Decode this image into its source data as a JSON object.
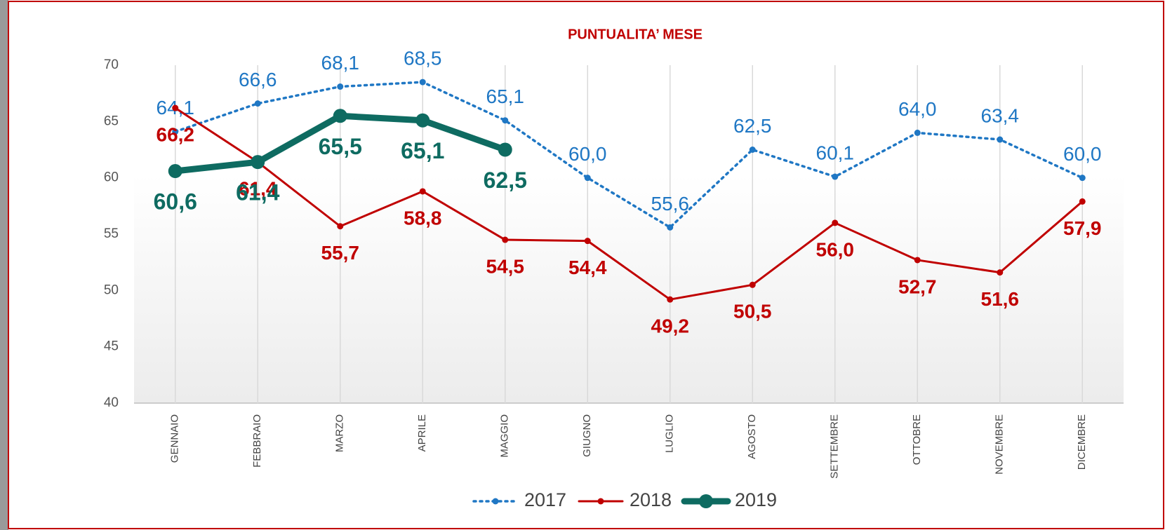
{
  "chart_data": {
    "type": "line",
    "title": "PUNTUALITA’ MESE",
    "categories": [
      "GENNAIO",
      "FEBBRAIO",
      "MARZO",
      "APRILE",
      "MAGGIO",
      "GIUGNO",
      "LUGLIO",
      "AGOSTO",
      "SETTEMBRE",
      "OTTOBRE",
      "NOVEMBRE",
      "DICEMBRE"
    ],
    "series": [
      {
        "name": "2017",
        "color": "#1f77c4",
        "style": "dotted",
        "values": [
          64.1,
          66.6,
          68.1,
          68.5,
          65.1,
          60.0,
          55.6,
          62.5,
          60.1,
          64.0,
          63.4,
          60.0
        ],
        "value_labels": [
          "64,1",
          "66,6",
          "68,1",
          "68,5",
          "65,1",
          "60,0",
          "55,6",
          "62,5",
          "60,1",
          "64,0",
          "63,4",
          "60,0"
        ]
      },
      {
        "name": "2018",
        "color": "#c00000",
        "style": "solid",
        "values": [
          66.2,
          61.4,
          55.7,
          58.8,
          54.5,
          54.4,
          49.2,
          50.5,
          56.0,
          52.7,
          51.6,
          57.9
        ],
        "value_labels": [
          "66,2",
          "61,4",
          "55,7",
          "58,8",
          "54,5",
          "54,4",
          "49,2",
          "50,5",
          "56,0",
          "52,7",
          "51,6",
          "57,9"
        ]
      },
      {
        "name": "2019",
        "color": "#0e6b61",
        "style": "thick",
        "values": [
          60.6,
          61.4,
          65.5,
          65.1,
          62.5,
          null,
          null,
          null,
          null,
          null,
          null,
          null
        ],
        "value_labels": [
          "60,6",
          "61,4",
          "65,5",
          "65,1",
          "62,5",
          null,
          null,
          null,
          null,
          null,
          null,
          null
        ]
      }
    ],
    "ylim": [
      40,
      70
    ],
    "yticks": [
      40,
      45,
      50,
      55,
      60,
      65,
      70
    ],
    "grid": true,
    "legend": "bottom"
  }
}
